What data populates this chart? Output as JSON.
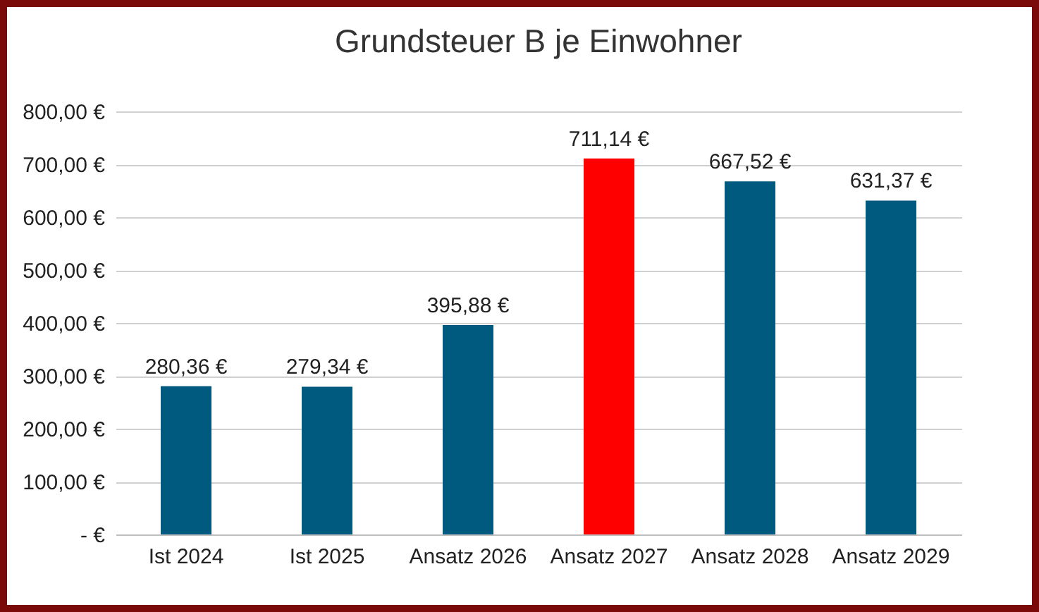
{
  "chart_data": {
    "type": "bar",
    "title": "Grundsteuer B je Einwohner",
    "categories": [
      "Ist 2024",
      "Ist 2025",
      "Ansatz 2026",
      "Ansatz 2027",
      "Ansatz 2028",
      "Ansatz 2029"
    ],
    "values": [
      280.36,
      279.34,
      395.88,
      711.14,
      667.52,
      631.37
    ],
    "colors": [
      "#005a80",
      "#005a80",
      "#005a80",
      "#ff0000",
      "#005a80",
      "#005a80"
    ],
    "value_labels": [
      "280,36 €",
      "279,34 €",
      "395,88 €",
      "711,14 €",
      "667,52 €",
      "631,37 €"
    ],
    "ylim": [
      0,
      800
    ],
    "yticks": [
      {
        "value": 0,
        "label": "-  €"
      },
      {
        "value": 100,
        "label": "100,00 €"
      },
      {
        "value": 200,
        "label": "200,00 €"
      },
      {
        "value": 300,
        "label": "300,00 €"
      },
      {
        "value": 400,
        "label": "400,00 €"
      },
      {
        "value": 500,
        "label": "500,00 €"
      },
      {
        "value": 600,
        "label": "600,00 €"
      },
      {
        "value": 700,
        "label": "700,00 €"
      },
      {
        "value": 800,
        "label": "800,00 €"
      }
    ],
    "grid": "y"
  }
}
